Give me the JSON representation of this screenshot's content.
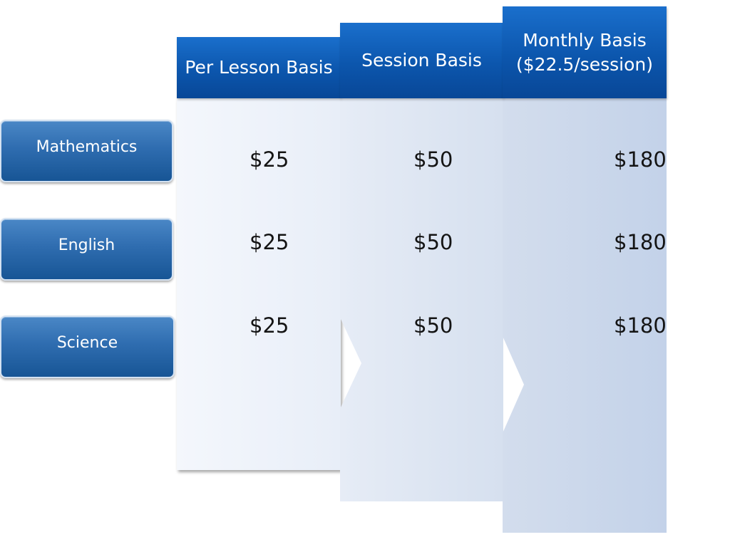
{
  "columns": [
    {
      "header_line1": "Per Lesson Basis",
      "header_line2": ""
    },
    {
      "header_line1": "Session Basis",
      "header_line2": ""
    },
    {
      "header_line1": "Monthly Basis",
      "header_line2": "($22.5/session)"
    }
  ],
  "rows": [
    {
      "label": "Mathematics",
      "prices": [
        "$25",
        "$50",
        "$180"
      ]
    },
    {
      "label": "English",
      "prices": [
        "$25",
        "$50",
        "$180"
      ]
    },
    {
      "label": "Science",
      "prices": [
        "$25",
        "$50",
        "$180"
      ]
    }
  ],
  "colors": {
    "header_blue": "#0c56ad",
    "label_blue": "#2f6db0",
    "col1_bg": "#eef2fa",
    "col2_bg": "#dde5f2",
    "col3_bg": "#c9d6eb"
  }
}
